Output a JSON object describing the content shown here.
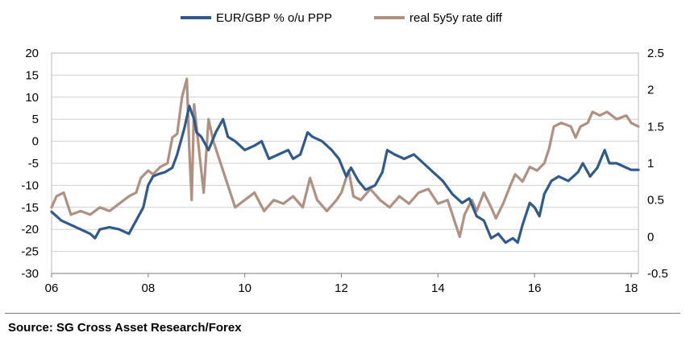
{
  "chart_data": {
    "type": "line",
    "x_range": [
      2006,
      2018.15
    ],
    "x_tick_labels": [
      "06",
      "08",
      "10",
      "12",
      "14",
      "16",
      "18"
    ],
    "x_ticks": [
      2006,
      2008,
      2010,
      2012,
      2014,
      2016,
      2018
    ],
    "y_left": {
      "range": [
        -30,
        20
      ],
      "ticks": [
        20,
        15,
        10,
        5,
        0,
        -5,
        -10,
        -15,
        -20,
        -25,
        -30
      ],
      "tick_labels": [
        "20",
        "15",
        "10",
        "5",
        "0",
        "-5",
        "-10",
        "-15",
        "-20",
        "-25",
        "-30"
      ]
    },
    "y_right": {
      "range": [
        -0.5,
        2.5
      ],
      "ticks": [
        2.5,
        2,
        1.5,
        1,
        0.5,
        0,
        -0.5
      ],
      "tick_labels": [
        "2.5",
        "2",
        "1.5",
        "1",
        "0.5",
        "0",
        "-0.5"
      ]
    },
    "gridlines": "horizontal",
    "legend_position": "top-center",
    "series": [
      {
        "name": "EUR/GBP % o/u PPP",
        "axis": "left",
        "color": "#2f5a8c",
        "points": [
          [
            2006.0,
            -16
          ],
          [
            2006.2,
            -18
          ],
          [
            2006.4,
            -19
          ],
          [
            2006.6,
            -20
          ],
          [
            2006.8,
            -21
          ],
          [
            2006.9,
            -22
          ],
          [
            2007.0,
            -20
          ],
          [
            2007.2,
            -19.5
          ],
          [
            2007.4,
            -20
          ],
          [
            2007.6,
            -21
          ],
          [
            2007.75,
            -18
          ],
          [
            2007.9,
            -15
          ],
          [
            2008.0,
            -10
          ],
          [
            2008.1,
            -8
          ],
          [
            2008.2,
            -7.5
          ],
          [
            2008.35,
            -7
          ],
          [
            2008.5,
            -6
          ],
          [
            2008.6,
            -3
          ],
          [
            2008.75,
            3
          ],
          [
            2008.85,
            8
          ],
          [
            2008.95,
            5
          ],
          [
            2009.0,
            2
          ],
          [
            2009.1,
            1
          ],
          [
            2009.25,
            -2
          ],
          [
            2009.4,
            2
          ],
          [
            2009.55,
            5
          ],
          [
            2009.65,
            1
          ],
          [
            2009.8,
            0
          ],
          [
            2010.0,
            -2
          ],
          [
            2010.2,
            -1
          ],
          [
            2010.35,
            0
          ],
          [
            2010.5,
            -4
          ],
          [
            2010.7,
            -3
          ],
          [
            2010.9,
            -2
          ],
          [
            2011.0,
            -4
          ],
          [
            2011.15,
            -3
          ],
          [
            2011.3,
            2
          ],
          [
            2011.4,
            1
          ],
          [
            2011.6,
            0
          ],
          [
            2011.8,
            -2
          ],
          [
            2011.95,
            -4
          ],
          [
            2012.1,
            -8
          ],
          [
            2012.2,
            -6
          ],
          [
            2012.35,
            -9
          ],
          [
            2012.5,
            -11
          ],
          [
            2012.7,
            -10
          ],
          [
            2012.85,
            -7
          ],
          [
            2012.95,
            -2
          ],
          [
            2013.1,
            -3
          ],
          [
            2013.3,
            -4
          ],
          [
            2013.5,
            -3
          ],
          [
            2013.7,
            -5
          ],
          [
            2013.9,
            -7
          ],
          [
            2014.1,
            -9
          ],
          [
            2014.3,
            -12
          ],
          [
            2014.5,
            -14
          ],
          [
            2014.65,
            -13
          ],
          [
            2014.8,
            -17
          ],
          [
            2014.95,
            -18
          ],
          [
            2015.1,
            -22
          ],
          [
            2015.25,
            -21
          ],
          [
            2015.4,
            -23
          ],
          [
            2015.55,
            -22
          ],
          [
            2015.65,
            -23
          ],
          [
            2015.75,
            -19
          ],
          [
            2015.9,
            -14
          ],
          [
            2016.0,
            -15
          ],
          [
            2016.1,
            -17
          ],
          [
            2016.2,
            -12
          ],
          [
            2016.35,
            -9
          ],
          [
            2016.5,
            -8
          ],
          [
            2016.7,
            -9
          ],
          [
            2016.9,
            -7
          ],
          [
            2017.0,
            -5
          ],
          [
            2017.15,
            -8
          ],
          [
            2017.3,
            -6
          ],
          [
            2017.45,
            -2
          ],
          [
            2017.55,
            -5
          ],
          [
            2017.7,
            -5
          ],
          [
            2017.9,
            -6
          ],
          [
            2018.0,
            -6.5
          ],
          [
            2018.15,
            -6.5
          ]
        ]
      },
      {
        "name": "real 5y5y rate diff",
        "axis": "right",
        "color": "#b09080",
        "points": [
          [
            2006.0,
            0.4
          ],
          [
            2006.1,
            0.55
          ],
          [
            2006.25,
            0.6
          ],
          [
            2006.4,
            0.3
          ],
          [
            2006.6,
            0.35
          ],
          [
            2006.8,
            0.3
          ],
          [
            2007.0,
            0.4
          ],
          [
            2007.2,
            0.35
          ],
          [
            2007.4,
            0.45
          ],
          [
            2007.6,
            0.55
          ],
          [
            2007.75,
            0.6
          ],
          [
            2007.85,
            0.8
          ],
          [
            2008.0,
            0.9
          ],
          [
            2008.1,
            0.85
          ],
          [
            2008.25,
            0.95
          ],
          [
            2008.4,
            1.0
          ],
          [
            2008.5,
            1.35
          ],
          [
            2008.6,
            1.4
          ],
          [
            2008.7,
            1.9
          ],
          [
            2008.8,
            2.15
          ],
          [
            2008.85,
            1.2
          ],
          [
            2008.9,
            0.5
          ],
          [
            2008.95,
            1.8
          ],
          [
            2009.05,
            1.2
          ],
          [
            2009.15,
            0.6
          ],
          [
            2009.25,
            1.6
          ],
          [
            2009.35,
            1.3
          ],
          [
            2009.5,
            1.0
          ],
          [
            2009.65,
            0.7
          ],
          [
            2009.8,
            0.4
          ],
          [
            2010.0,
            0.5
          ],
          [
            2010.2,
            0.6
          ],
          [
            2010.4,
            0.35
          ],
          [
            2010.6,
            0.5
          ],
          [
            2010.8,
            0.45
          ],
          [
            2011.0,
            0.55
          ],
          [
            2011.2,
            0.4
          ],
          [
            2011.35,
            0.8
          ],
          [
            2011.5,
            0.5
          ],
          [
            2011.7,
            0.35
          ],
          [
            2011.9,
            0.5
          ],
          [
            2012.0,
            0.6
          ],
          [
            2012.15,
            0.9
          ],
          [
            2012.25,
            0.55
          ],
          [
            2012.4,
            0.5
          ],
          [
            2012.6,
            0.65
          ],
          [
            2012.8,
            0.5
          ],
          [
            2013.0,
            0.4
          ],
          [
            2013.2,
            0.55
          ],
          [
            2013.4,
            0.45
          ],
          [
            2013.6,
            0.6
          ],
          [
            2013.8,
            0.65
          ],
          [
            2014.0,
            0.45
          ],
          [
            2014.2,
            0.5
          ],
          [
            2014.35,
            0.2
          ],
          [
            2014.45,
            0.0
          ],
          [
            2014.55,
            0.3
          ],
          [
            2014.7,
            0.5
          ],
          [
            2014.8,
            0.35
          ],
          [
            2014.95,
            0.6
          ],
          [
            2015.1,
            0.4
          ],
          [
            2015.2,
            0.25
          ],
          [
            2015.35,
            0.45
          ],
          [
            2015.5,
            0.7
          ],
          [
            2015.6,
            0.85
          ],
          [
            2015.75,
            0.75
          ],
          [
            2015.9,
            0.95
          ],
          [
            2016.05,
            0.9
          ],
          [
            2016.2,
            1.0
          ],
          [
            2016.3,
            1.2
          ],
          [
            2016.4,
            1.5
          ],
          [
            2016.55,
            1.55
          ],
          [
            2016.75,
            1.5
          ],
          [
            2016.85,
            1.35
          ],
          [
            2016.95,
            1.5
          ],
          [
            2017.1,
            1.55
          ],
          [
            2017.2,
            1.7
          ],
          [
            2017.35,
            1.65
          ],
          [
            2017.5,
            1.7
          ],
          [
            2017.7,
            1.6
          ],
          [
            2017.9,
            1.65
          ],
          [
            2018.0,
            1.55
          ],
          [
            2018.15,
            1.5
          ]
        ]
      }
    ]
  },
  "source_text": "Source: SG Cross Asset Research/Forex"
}
